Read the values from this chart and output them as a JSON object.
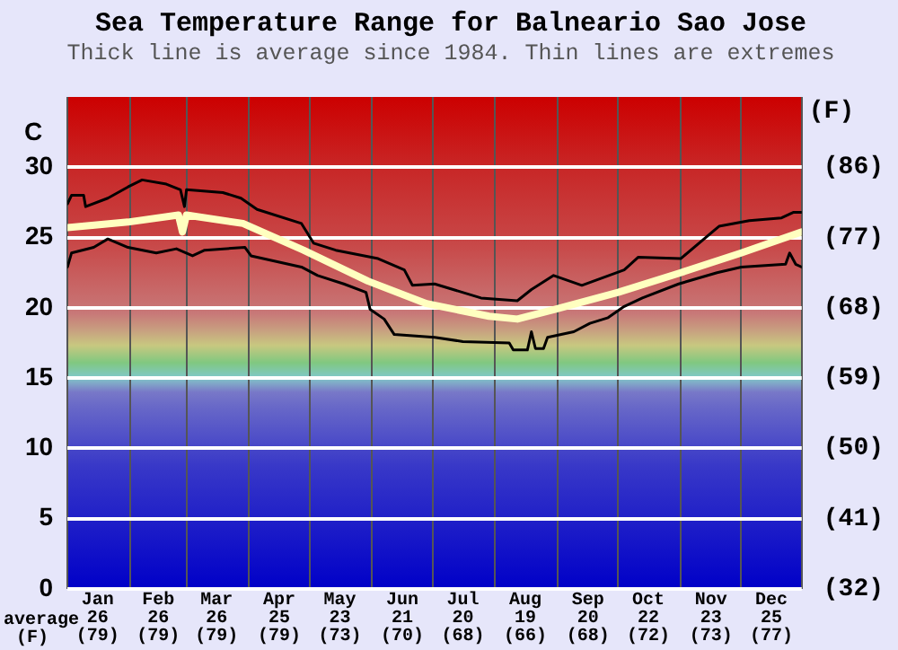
{
  "chart_data": {
    "type": "line",
    "title": "Sea Temperature Range for Balneario Sao Jose",
    "subtitle": "Thick line is average since 1984. Thin lines are extremes",
    "ylabel": "C",
    "y2label": "(F)",
    "annotations": [
      "average (F)"
    ],
    "xlim": [
      "--01-01",
      "--12-31"
    ],
    "xticks": [
      {
        "value": "--01-01",
        "label": null
      },
      {
        "value": "--01-16",
        "label": "Jan\n26\n(79)"
      },
      {
        "value": "--02-01",
        "label": null
      },
      {
        "value": "--02-15",
        "label": "Feb\n26\n(79)"
      },
      {
        "value": "--03-01",
        "label": null
      },
      {
        "value": "--03-16",
        "label": "Mar\n26\n(79)"
      },
      {
        "value": "--04-01",
        "label": null
      },
      {
        "value": "--04-16",
        "label": "Apr\n25\n(79)"
      },
      {
        "value": "--05-01",
        "label": null
      },
      {
        "value": "--05-16",
        "label": "May\n23\n(73)"
      },
      {
        "value": "--06-01",
        "label": null
      },
      {
        "value": "--06-16",
        "label": "Jun\n21\n(70)"
      },
      {
        "value": "--07-01",
        "label": null
      },
      {
        "value": "--07-16",
        "label": "Jul\n20\n(68)"
      },
      {
        "value": "--08-01",
        "label": null
      },
      {
        "value": "--08-16",
        "label": "Aug\n19\n(66)"
      },
      {
        "value": "--09-01",
        "label": null
      },
      {
        "value": "--09-16",
        "label": "Sep\n20\n(68)"
      },
      {
        "value": "--10-01",
        "label": null
      },
      {
        "value": "--10-16",
        "label": "Oct\n22\n(72)"
      },
      {
        "value": "--11-01",
        "label": null
      },
      {
        "value": "--11-16",
        "label": "Nov\n23\n(73)"
      },
      {
        "value": "--12-01",
        "label": null
      },
      {
        "value": "--12-16",
        "label": "Dec\n25\n(77)"
      },
      {
        "value": "--12-31",
        "label": null
      }
    ],
    "ylim": [
      0,
      35
    ],
    "yticks": [
      0,
      5,
      10,
      15,
      20,
      25,
      30
    ],
    "y2lim": [
      32,
      95
    ],
    "y2ticks": [
      {
        "value": 32,
        "label": "(32)"
      },
      {
        "value": 41,
        "label": "(41)"
      },
      {
        "value": 50,
        "label": "(50)"
      },
      {
        "value": 59,
        "label": "(59)"
      },
      {
        "value": 68,
        "label": "(68)"
      },
      {
        "value": 77,
        "label": "(77)"
      },
      {
        "value": 86,
        "label": "(86)"
      }
    ],
    "grid": true,
    "series": [
      {
        "color": "#000000",
        "x": [
          "--01-01",
          "--01-03",
          "--01-09",
          "--01-10",
          "--01-21",
          "--01-31",
          "--02-07",
          "--02-19",
          "--02-26",
          "--02-28",
          "--03-01",
          "--03-19",
          "--03-28",
          "--04-05",
          "--04-27",
          "--05-03",
          "--05-14",
          "--06-04",
          "--06-17",
          "--06-21",
          "--07-02",
          "--07-25",
          "--08-12",
          "--08-19",
          "--08-30",
          "--09-13",
          "--10-04",
          "--10-11",
          "--11-01",
          "--11-20",
          "--12-05",
          "--12-21",
          "--12-27",
          "--12-31"
        ],
        "values": [
          27.4,
          28.0,
          28.0,
          27.2,
          27.8,
          28.6,
          29.1,
          28.8,
          28.4,
          27.2,
          28.4,
          28.2,
          27.8,
          27.0,
          26.0,
          24.6,
          24.1,
          23.5,
          22.7,
          21.6,
          21.7,
          20.7,
          20.5,
          21.3,
          22.3,
          21.6,
          22.7,
          23.6,
          23.5,
          25.8,
          26.2,
          26.4,
          26.8,
          26.8
        ]
      },
      {
        "color": "#ffffc0",
        "x": [
          "--01-01",
          "--01-31",
          "--02-25",
          "--02-27",
          "--03-01",
          "--03-29",
          "--04-28",
          "--05-30",
          "--06-28",
          "--07-29",
          "--08-12",
          "--08-31",
          "--10-01",
          "--11-01",
          "--12-01",
          "--12-31"
        ],
        "values": [
          25.7,
          26.1,
          26.6,
          25.4,
          26.6,
          26.0,
          24.1,
          21.9,
          20.3,
          19.4,
          19.2,
          19.9,
          21.1,
          22.5,
          23.9,
          25.4
        ]
      },
      {
        "color": "#000000",
        "x": [
          "--01-01",
          "--01-03",
          "--01-14",
          "--01-21",
          "--01-31",
          "--02-14",
          "--02-24",
          "--03-04",
          "--03-10",
          "--03-30",
          "--04-02",
          "--04-27",
          "--05-05",
          "--05-18",
          "--05-29",
          "--05-31",
          "--06-07",
          "--06-12",
          "--07-02",
          "--07-16",
          "--08-08",
          "--08-10",
          "--08-17",
          "--08-19",
          "--08-21",
          "--08-25",
          "--08-27",
          "--09-09",
          "--09-17",
          "--09-26",
          "--10-04",
          "--10-13",
          "--10-31",
          "--11-19",
          "--12-01",
          "--12-23",
          "--12-25",
          "--12-28",
          "--12-31"
        ],
        "values": [
          22.9,
          23.9,
          24.3,
          24.9,
          24.3,
          23.9,
          24.2,
          23.7,
          24.1,
          24.3,
          23.7,
          22.9,
          22.3,
          21.7,
          21.1,
          19.9,
          19.2,
          18.1,
          17.9,
          17.6,
          17.5,
          17.0,
          17.0,
          18.3,
          17.1,
          17.1,
          17.9,
          18.3,
          18.9,
          19.3,
          20.1,
          20.7,
          21.7,
          22.5,
          22.9,
          23.1,
          23.9,
          23.1,
          22.9
        ]
      }
    ]
  }
}
